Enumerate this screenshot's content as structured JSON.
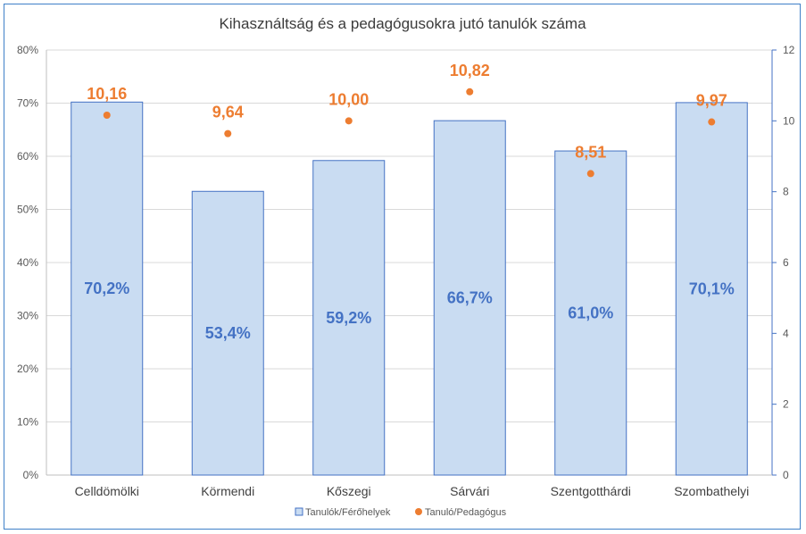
{
  "chart_data": {
    "type": "bar",
    "title": "Kihasználtság és a pedagógusokra jutó tanulók száma",
    "categories": [
      "Celldömölki",
      "Körmendi",
      "Kőszegi",
      "Sárvári",
      "Szentgotthárdi",
      "Szombathelyi"
    ],
    "series": [
      {
        "name": "Tanulók/Férőhelyek",
        "type": "bar",
        "axis": "left",
        "values": [
          70.2,
          53.4,
          59.2,
          66.7,
          61.0,
          70.1
        ],
        "labels": [
          "70,2%",
          "53,4%",
          "59,2%",
          "66,7%",
          "61,0%",
          "70,1%"
        ],
        "color": "#c9dcf2",
        "border_color": "#4472c4"
      },
      {
        "name": "Tanuló/Pedagógus",
        "type": "scatter",
        "axis": "right",
        "values": [
          10.16,
          9.64,
          10.0,
          10.82,
          8.51,
          9.97
        ],
        "labels": [
          "10,16",
          "9,64",
          "10,00",
          "10,82",
          "8,51",
          "9,97"
        ],
        "color": "#ed7d31"
      }
    ],
    "y_left": {
      "ylim": [
        0,
        80
      ],
      "ticks": [
        0,
        10,
        20,
        30,
        40,
        50,
        60,
        70,
        80
      ],
      "tick_labels": [
        "0%",
        "10%",
        "20%",
        "30%",
        "40%",
        "50%",
        "60%",
        "70%",
        "80%"
      ]
    },
    "y_right": {
      "ylim": [
        0,
        12
      ],
      "ticks": [
        0,
        2,
        4,
        6,
        8,
        10,
        12
      ],
      "tick_labels": [
        "0",
        "2",
        "4",
        "6",
        "8",
        "10",
        "12"
      ]
    },
    "grid": true,
    "legend_position": "bottom",
    "legend": [
      {
        "label": "Tanulók/Férőhelyek",
        "marker": "square",
        "color": "#c9dcf2"
      },
      {
        "label": "Tanuló/Pedagógus",
        "marker": "circle",
        "color": "#ed7d31"
      }
    ]
  }
}
